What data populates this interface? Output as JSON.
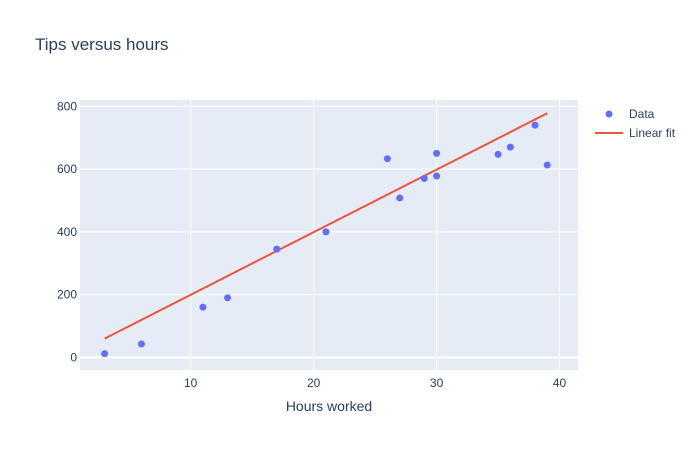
{
  "chart_data": {
    "type": "scatter",
    "title": "Tips versus hours",
    "xlabel": "Hours worked",
    "ylabel": "",
    "xlim": [
      1,
      41.5
    ],
    "ylim": [
      -40,
      820
    ],
    "x_ticks": [
      10,
      20,
      30,
      40
    ],
    "y_ticks": [
      0,
      200,
      400,
      600,
      800
    ],
    "grid": true,
    "legend_position": "top-right",
    "colors": {
      "data": "#636efa",
      "fit": "#ef553b",
      "plot_bg": "#e5ecf6",
      "text": "#2a3f5f"
    },
    "series": [
      {
        "name": "Data",
        "mode": "markers",
        "x": [
          3,
          6,
          11,
          13,
          17,
          21,
          26,
          27,
          29,
          30,
          30,
          35,
          36,
          38,
          39
        ],
        "y": [
          12,
          43,
          160,
          190,
          345,
          400,
          633,
          508,
          570,
          650,
          578,
          647,
          670,
          740,
          613
        ]
      },
      {
        "name": "Linear fit",
        "mode": "lines",
        "x": [
          3,
          39
        ],
        "y": [
          60,
          778
        ]
      }
    ]
  }
}
